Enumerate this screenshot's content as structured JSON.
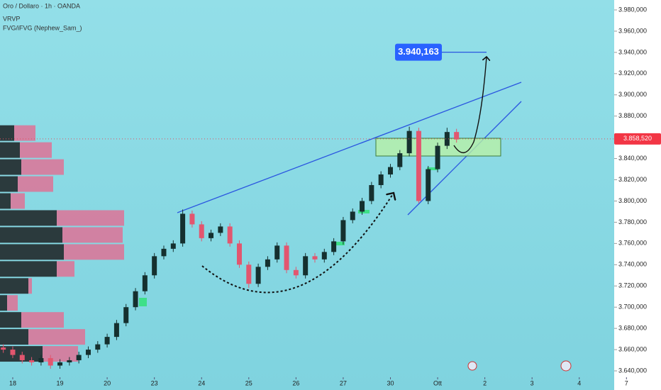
{
  "header": {
    "symbol": "Oro / Dollaro · 1h · OANDA",
    "indicators": [
      "VRVP",
      "FVG/iFVG (Nephew_Sam_)"
    ]
  },
  "chart_data": {
    "type": "candlestick",
    "x": [
      -0.2,
      0,
      0.2,
      0.4,
      0.6,
      0.8,
      1,
      1.2,
      1.4,
      1.6,
      1.8,
      2,
      2.2,
      2.4,
      2.6,
      2.8,
      3,
      3.2,
      3.4,
      3.6,
      3.8,
      4,
      4.2,
      4.4,
      4.6,
      4.8,
      5,
      5.2,
      5.4,
      5.6,
      5.8,
      6,
      6.2,
      6.4,
      6.6,
      6.8,
      7,
      7.2,
      7.4,
      7.6,
      7.8,
      8,
      8.2,
      8.4,
      8.6,
      8.8,
      9,
      9.2,
      9.4
    ],
    "open": [
      3662,
      3660,
      3655,
      3650,
      3648,
      3652,
      3645,
      3648,
      3650,
      3655,
      3660,
      3665,
      3672,
      3685,
      3700,
      3715,
      3730,
      3748,
      3755,
      3760,
      3788,
      3778,
      3765,
      3770,
      3776,
      3760,
      3740,
      3722,
      3738,
      3745,
      3758,
      3735,
      3730,
      3748,
      3745,
      3752,
      3762,
      3782,
      3790,
      3800,
      3815,
      3825,
      3832,
      3845,
      3866,
      3800,
      3830,
      3852,
      3865
    ],
    "high": [
      3665,
      3663,
      3658,
      3653,
      3655,
      3655,
      3651,
      3653,
      3658,
      3663,
      3668,
      3675,
      3688,
      3703,
      3718,
      3733,
      3751,
      3758,
      3763,
      3792,
      3791,
      3781,
      3773,
      3779,
      3779,
      3763,
      3743,
      3741,
      3748,
      3761,
      3761,
      3738,
      3751,
      3751,
      3755,
      3765,
      3785,
      3793,
      3803,
      3818,
      3828,
      3835,
      3848,
      3870,
      3869,
      3833,
      3855,
      3869,
      3868
    ],
    "low": [
      3657,
      3652,
      3647,
      3645,
      3645,
      3642,
      3642,
      3645,
      3647,
      3652,
      3657,
      3662,
      3669,
      3682,
      3697,
      3712,
      3727,
      3745,
      3752,
      3757,
      3775,
      3762,
      3762,
      3767,
      3757,
      3737,
      3718,
      3719,
      3735,
      3742,
      3732,
      3727,
      3727,
      3742,
      3742,
      3749,
      3759,
      3779,
      3787,
      3797,
      3812,
      3822,
      3829,
      3842,
      3798,
      3797,
      3827,
      3849,
      3855
    ],
    "close": [
      3660,
      3655,
      3650,
      3648,
      3652,
      3645,
      3648,
      3650,
      3655,
      3660,
      3665,
      3672,
      3685,
      3700,
      3715,
      3730,
      3748,
      3755,
      3760,
      3788,
      3778,
      3765,
      3770,
      3776,
      3760,
      3740,
      3722,
      3738,
      3745,
      3758,
      3735,
      3730,
      3748,
      3745,
      3752,
      3762,
      3782,
      3790,
      3800,
      3815,
      3825,
      3832,
      3845,
      3866,
      3800,
      3830,
      3852,
      3865,
      3858
    ],
    "up_color": "#15302f",
    "down_color": "#e2566f",
    "xlim": [
      -0.27,
      12.74
    ],
    "xticks": [
      {
        "value": 0,
        "label": "18"
      },
      {
        "value": 1,
        "label": "19"
      },
      {
        "value": 2,
        "label": "20"
      },
      {
        "value": 3,
        "label": "23"
      },
      {
        "value": 4,
        "label": "24"
      },
      {
        "value": 5,
        "label": "25"
      },
      {
        "value": 6,
        "label": "26"
      },
      {
        "value": 7,
        "label": "27"
      },
      {
        "value": 8,
        "label": "30"
      },
      {
        "value": 9,
        "label": "Ott"
      },
      {
        "value": 10,
        "label": "2"
      },
      {
        "value": 11,
        "label": "3"
      },
      {
        "value": 12,
        "label": "4"
      },
      {
        "value": 13,
        "label": "7"
      }
    ],
    "ylim": [
      3634,
      3989.35
    ],
    "yticks": [
      {
        "value": 3640,
        "label": "3.640,000"
      },
      {
        "value": 3660,
        "label": "3.660,000"
      },
      {
        "value": 3680,
        "label": "3.680,000"
      },
      {
        "value": 3700,
        "label": "3.700,000"
      },
      {
        "value": 3720,
        "label": "3.720,000"
      },
      {
        "value": 3740,
        "label": "3.740,000"
      },
      {
        "value": 3760,
        "label": "3.760,000"
      },
      {
        "value": 3780,
        "label": "3.780,000"
      },
      {
        "value": 3800,
        "label": "3.800,000"
      },
      {
        "value": 3820,
        "label": "3.820,000"
      },
      {
        "value": 3840,
        "label": "3.840,000"
      },
      {
        "value": 3860,
        "label": "3.860,000"
      },
      {
        "value": 3880,
        "label": "3.880,000"
      },
      {
        "value": 3900,
        "label": "3.900,000"
      },
      {
        "value": 3920,
        "label": "3.920,000"
      },
      {
        "value": 3940,
        "label": "3.940,000"
      },
      {
        "value": 3960,
        "label": "3.960,000"
      },
      {
        "value": 3980,
        "label": "3.980,000"
      }
    ],
    "last_price": {
      "value": 3858.52,
      "label": "3.858,520"
    },
    "target": {
      "value": 3940.163,
      "label": "3.940,163"
    },
    "volume_profile": {
      "prices": [
        3864,
        3848,
        3832,
        3816,
        3800,
        3784,
        3768,
        3752,
        3736,
        3720,
        3704,
        3688,
        3672,
        3656
      ],
      "buy": [
        20,
        28,
        30,
        25,
        15,
        80,
        88,
        90,
        80,
        40,
        10,
        30,
        40,
        60
      ],
      "sell": [
        30,
        45,
        60,
        50,
        20,
        95,
        85,
        85,
        25,
        5,
        15,
        60,
        80,
        50
      ],
      "buy_color": "#2b3a3d",
      "sell_color": "#d9789a"
    }
  }
}
